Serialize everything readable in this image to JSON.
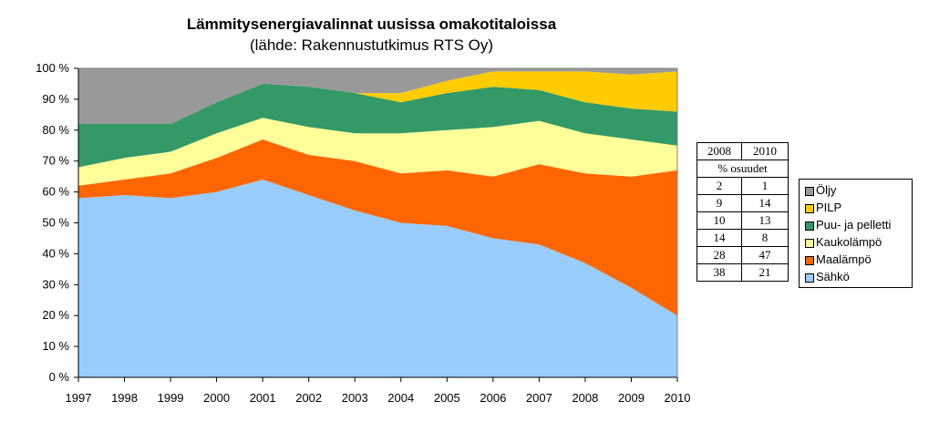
{
  "chart_data": {
    "type": "area",
    "stacked": true,
    "title": "Lämmitysenergiavalinnat uusissa omakotitaloissa",
    "subtitle": "(lähde: Rakennustutkimus RTS Oy)",
    "x": [
      1997,
      1998,
      1999,
      2000,
      2001,
      2002,
      2003,
      2004,
      2005,
      2006,
      2007,
      2008,
      2009,
      2010
    ],
    "ylim": [
      0,
      100
    ],
    "yticks": [
      "0 %",
      "10 %",
      "20 %",
      "30 %",
      "40 %",
      "50 %",
      "60 %",
      "70 %",
      "80 %",
      "90 %",
      "100 %"
    ],
    "grid": false,
    "legend_position": "right",
    "series": [
      {
        "name": "Sähkö",
        "color": "#99ccff",
        "values": [
          58,
          59,
          58,
          60,
          64,
          59,
          54,
          50,
          49,
          45,
          43,
          37,
          29,
          20
        ]
      },
      {
        "name": "Maalämpö",
        "color": "#ff6600",
        "values": [
          4,
          5,
          8,
          11,
          13,
          13,
          16,
          16,
          18,
          20,
          26,
          29,
          36,
          47
        ]
      },
      {
        "name": "Kaukolämpö",
        "color": "#ffff99",
        "values": [
          6,
          7,
          7,
          8,
          7,
          9,
          9,
          13,
          13,
          16,
          14,
          13,
          12,
          8
        ]
      },
      {
        "name": "Puu- ja pelletti",
        "color": "#339966",
        "values": [
          14,
          11,
          9,
          10,
          11,
          13,
          13,
          10,
          12,
          13,
          10,
          10,
          10,
          11
        ]
      },
      {
        "name": "PILP",
        "color": "#ffcc00",
        "values": [
          0,
          0,
          0,
          0,
          0,
          0,
          0,
          3,
          4,
          5,
          6,
          10,
          11,
          13
        ]
      },
      {
        "name": "Öljy",
        "color": "#999999",
        "values": [
          18,
          18,
          18,
          11,
          5,
          6,
          8,
          8,
          4,
          1,
          1,
          1,
          2,
          1
        ]
      }
    ],
    "share_table": {
      "headers": [
        "2008",
        "2010"
      ],
      "caption": "% osuudet",
      "rows": [
        [
          "2",
          "1"
        ],
        [
          "9",
          "14"
        ],
        [
          "10",
          "13"
        ],
        [
          "14",
          "8"
        ],
        [
          "28",
          "47"
        ],
        [
          "38",
          "21"
        ]
      ]
    },
    "legend": [
      {
        "label": "Öljy",
        "color": "#999999"
      },
      {
        "label": "PILP",
        "color": "#ffcc00"
      },
      {
        "label": "Puu- ja pelletti",
        "color": "#339966"
      },
      {
        "label": "Kaukolämpö",
        "color": "#ffff99"
      },
      {
        "label": "Maalämpö",
        "color": "#ff6600"
      },
      {
        "label": "Sähkö",
        "color": "#99ccff"
      }
    ]
  }
}
